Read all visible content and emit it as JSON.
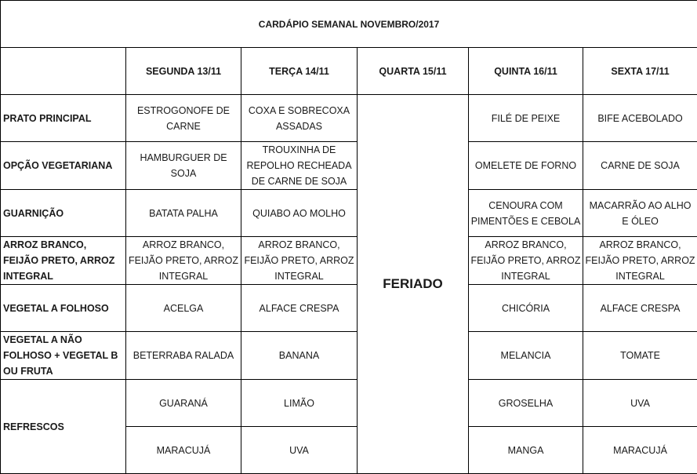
{
  "title": "CARDÁPIO SEMANAL NOVEMBRO/2017",
  "days": [
    "SEGUNDA   13/11",
    "TERÇA 14/11",
    "QUARTA 15/11",
    "QUINTA 16/11",
    "SEXTA 17/11"
  ],
  "holiday_label": "FERIADO",
  "rows": [
    {
      "label": "PRATO PRINCIPAL",
      "cells": [
        "ESTROGONOFE DE CARNE",
        "COXA E SOBRECOXA ASSADAS",
        "FILÉ DE PEIXE",
        "BIFE ACEBOLADO"
      ]
    },
    {
      "label": "OPÇÃO VEGETARIANA",
      "cells": [
        "HAMBURGUER DE SOJA",
        "TROUXINHA DE REPOLHO RECHEADA DE CARNE DE SOJA",
        "OMELETE DE FORNO",
        "CARNE DE SOJA"
      ]
    },
    {
      "label": "GUARNIÇÃO",
      "cells": [
        "BATATA PALHA",
        "QUIABO AO MOLHO",
        "CENOURA COM PIMENTÕES E CEBOLA",
        "MACARRÃO AO ALHO E ÓLEO"
      ]
    },
    {
      "label": "ARROZ BRANCO, FEIJÃO PRETO, ARROZ INTEGRAL",
      "cells": [
        "ARROZ BRANCO, FEIJÃO PRETO, ARROZ INTEGRAL",
        "ARROZ BRANCO, FEIJÃO PRETO, ARROZ INTEGRAL",
        "ARROZ BRANCO, FEIJÃO PRETO, ARROZ INTEGRAL",
        "ARROZ BRANCO, FEIJÃO PRETO, ARROZ INTEGRAL"
      ]
    },
    {
      "label": "VEGETAL A FOLHOSO",
      "cells": [
        "ACELGA",
        "ALFACE CRESPA",
        "CHICÓRIA",
        "ALFACE CRESPA"
      ]
    },
    {
      "label": "VEGETAL A NÃO FOLHOSO + VEGETAL B OU FRUTA",
      "cells": [
        "BETERRABA RALADA",
        "BANANA",
        "MELANCIA",
        "TOMATE"
      ]
    },
    {
      "label": "REFRESCOS",
      "cells": [
        "GUARANÁ",
        "LIMÃO",
        "GROSELHA",
        "UVA"
      ]
    },
    {
      "label": "",
      "cells": [
        "MARACUJÁ",
        "UVA",
        "MANGA",
        "MARACUJÁ"
      ]
    }
  ]
}
